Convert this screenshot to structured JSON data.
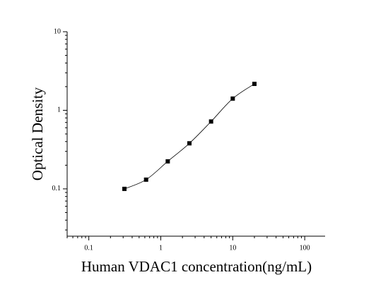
{
  "chart_data": {
    "type": "scatter",
    "x_label": "Human VDAC1 concentration(ng/mL)",
    "y_label": "Optical Density",
    "x": [
      0.3125,
      0.625,
      1.25,
      2.5,
      5,
      10,
      20
    ],
    "series": [
      {
        "color": "#000000",
        "values": [
          0.1,
          0.131,
          0.224,
          0.38,
          0.72,
          1.41,
          2.17
        ]
      }
    ],
    "xlim": [
      0.05,
      192
    ],
    "ylim": [
      0.025,
      10
    ],
    "xticks": [
      0.1,
      1,
      10,
      100
    ],
    "yticks": [
      0.1,
      1,
      10
    ],
    "xscale": "log",
    "yscale": "log",
    "fit_curve": true
  }
}
